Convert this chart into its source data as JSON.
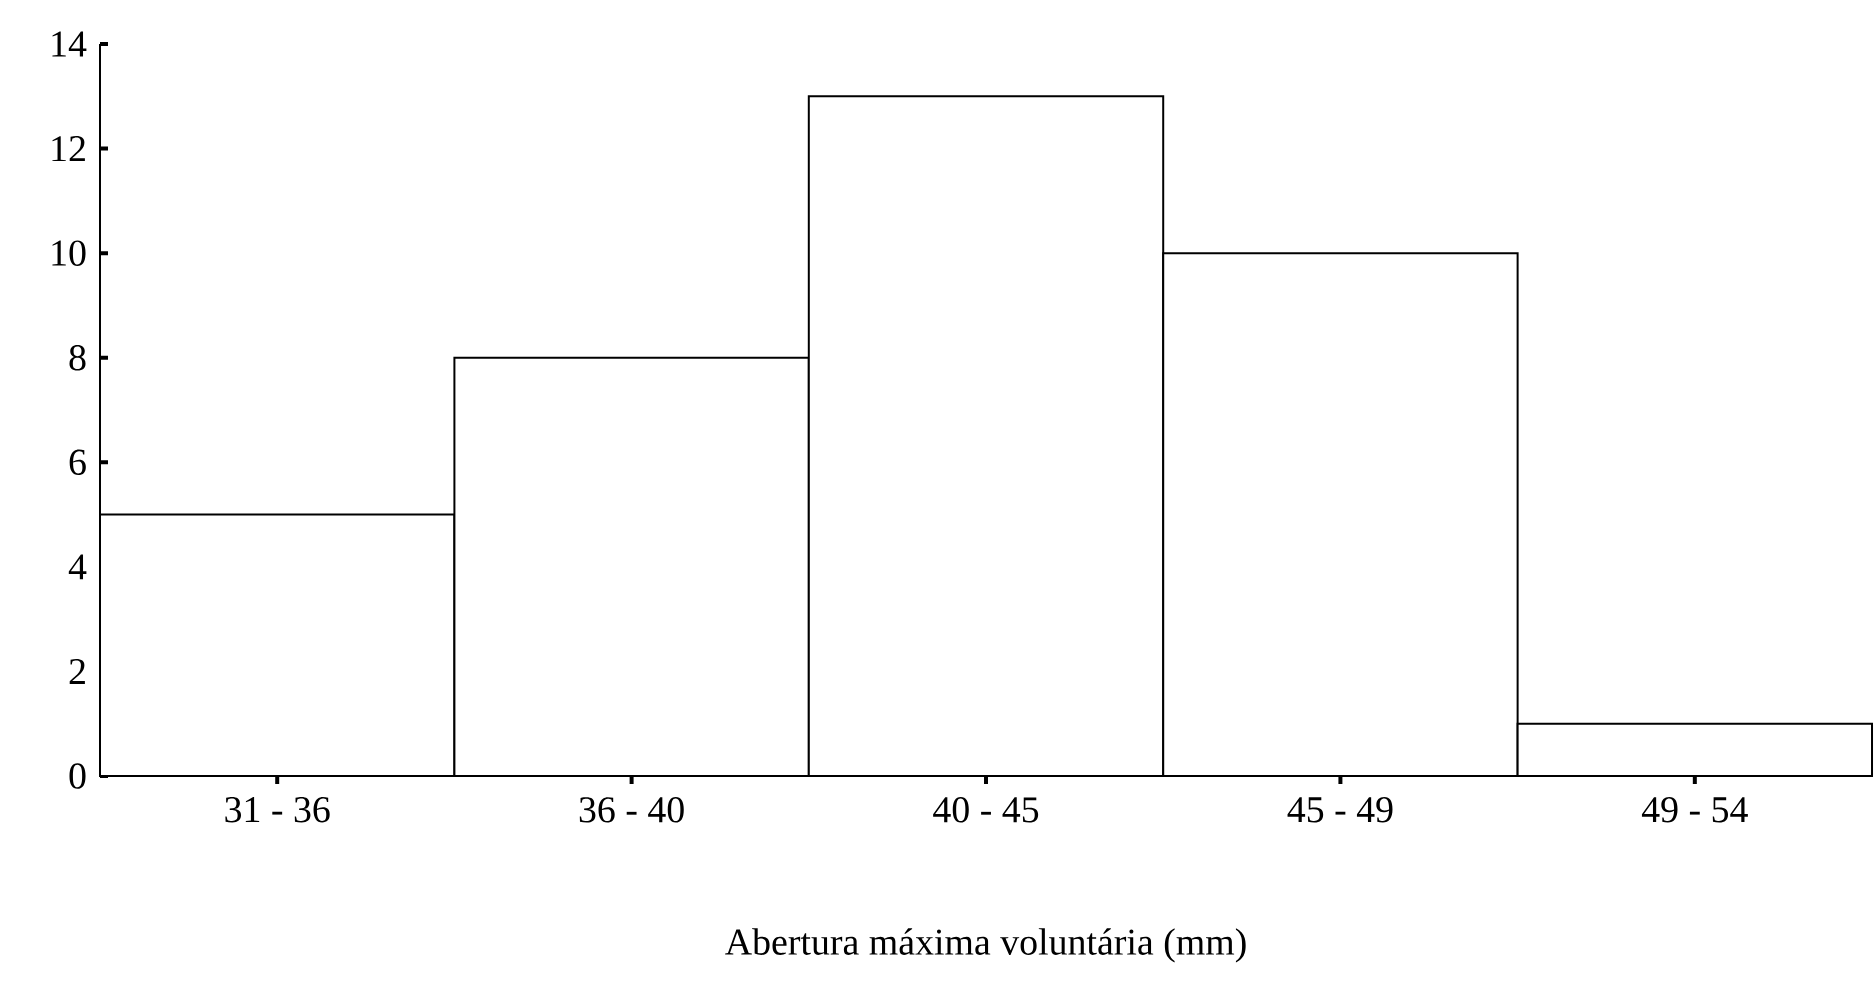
{
  "chart_data": {
    "type": "bar",
    "xlabel": "Abertura máxima voluntária (mm)",
    "categories": [
      "31 - 36",
      "36 - 40",
      "40 - 45",
      "45 - 49",
      "49 - 54"
    ],
    "values": [
      5,
      8,
      13,
      10,
      1
    ],
    "color": "#ffffff",
    "ylim": [
      0,
      14
    ],
    "yticks": [
      0,
      2,
      4,
      6,
      8,
      10,
      12,
      14
    ]
  }
}
